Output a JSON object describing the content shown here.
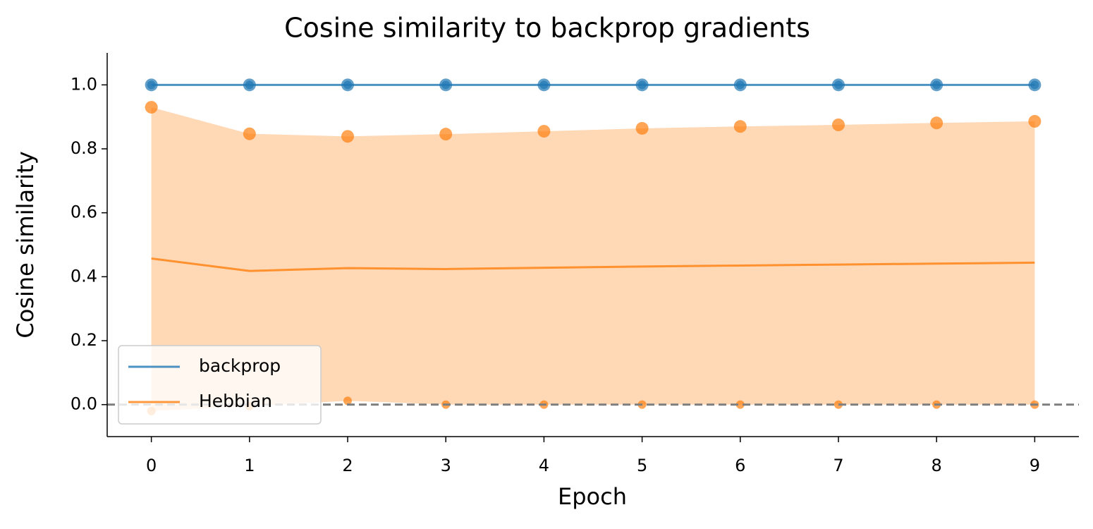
{
  "chart_data": {
    "type": "line",
    "title": "Cosine similarity to backprop gradients",
    "x_label": "Epoch",
    "y_label": "Cosine similarity",
    "x": [
      0,
      1,
      2,
      3,
      4,
      5,
      6,
      7,
      8,
      9
    ],
    "series": [
      {
        "name": "backprop",
        "color": "#1f77b4",
        "values": [
          1,
          1,
          1,
          1,
          1,
          1,
          1,
          1,
          1,
          1
        ],
        "max": [
          1,
          1,
          1,
          1,
          1,
          1,
          1,
          1,
          1,
          1
        ],
        "min": [
          1,
          1,
          1,
          1,
          1,
          1,
          1,
          1,
          1,
          1
        ]
      },
      {
        "name": "Hebbian",
        "color": "#ff7f0e",
        "values": [
          0.457,
          0.418,
          0.427,
          0.424,
          0.428,
          0.432,
          0.435,
          0.438,
          0.441,
          0.444
        ],
        "max": [
          0.93,
          0.847,
          0.839,
          0.846,
          0.855,
          0.864,
          0.87,
          0.875,
          0.881,
          0.886
        ],
        "min": [
          -0.02,
          -0.005,
          0.012,
          0,
          0,
          0,
          0,
          0,
          0,
          0
        ]
      }
    ],
    "xlim": [
      -0.45,
      9.45
    ],
    "ylim": [
      -0.1,
      1.1
    ],
    "xticks": [
      0,
      1,
      2,
      3,
      4,
      5,
      6,
      7,
      8,
      9
    ],
    "yticks": [
      {
        "value": 0,
        "label": "0.0"
      },
      0.2,
      0.4,
      0.6,
      0.8,
      {
        "value": 1,
        "label": "1.0"
      }
    ],
    "hline": 0,
    "legend": "lower left"
  }
}
